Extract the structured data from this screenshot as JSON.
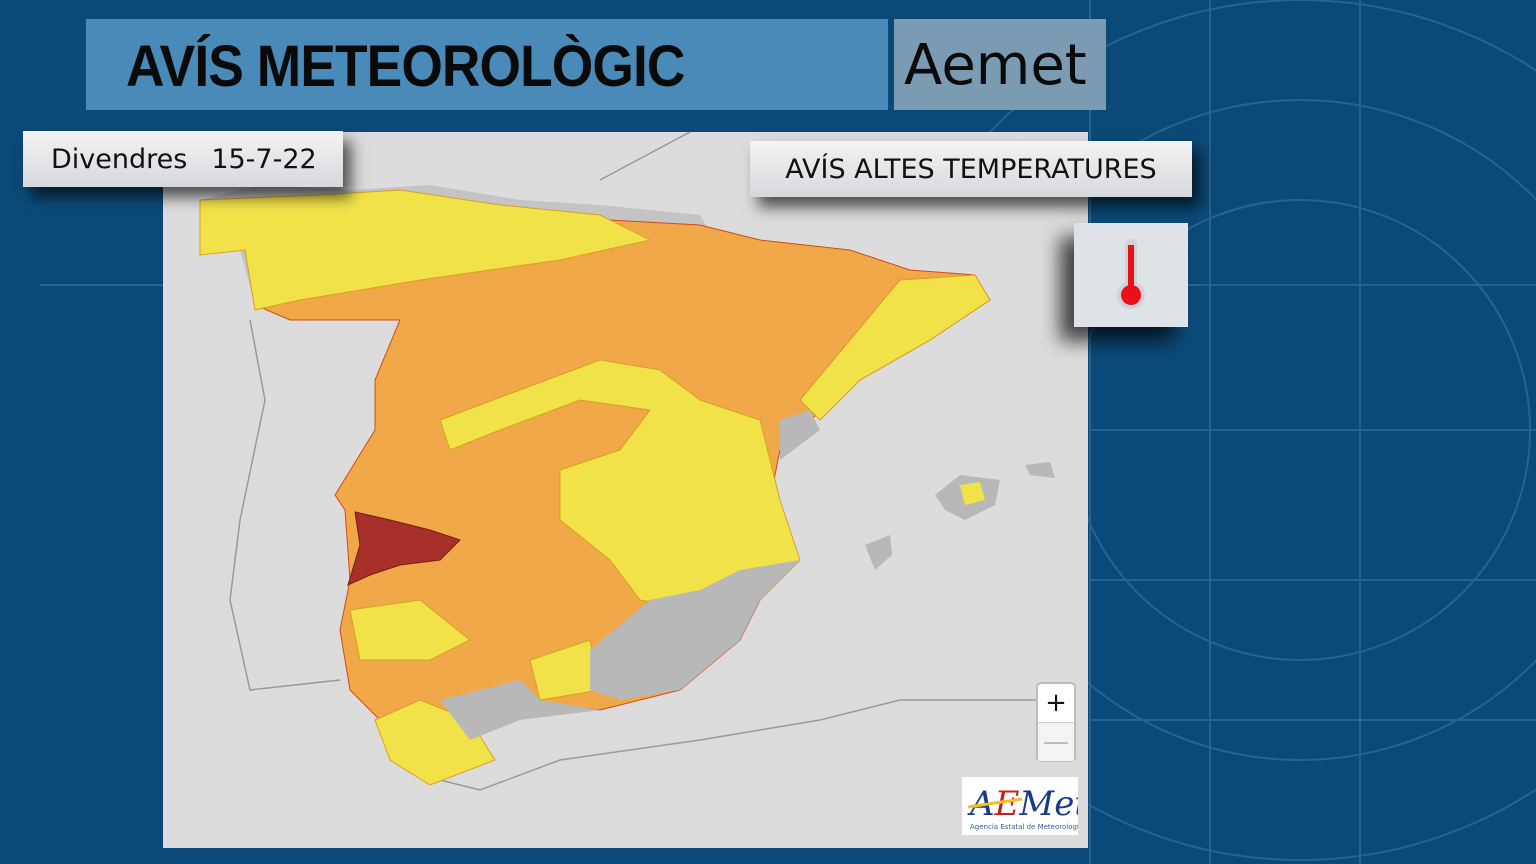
{
  "header": {
    "title": "AVÍS METEOROLÒGIC",
    "brand": "Aemet"
  },
  "date": {
    "day": "Divendres",
    "value": "15-7-22"
  },
  "warning": {
    "label": "AVÍS ALTES TEMPERATURES",
    "icon": "thermometer-icon"
  },
  "map": {
    "zoom_in": "+",
    "zoom_out": "—",
    "logo_text": "AEMet",
    "logo_subtext": "Agencia Estatal de Meteorología",
    "legend_colors": {
      "orange": "#f0a848",
      "yellow": "#f2e24a",
      "red": "#a8302a",
      "no_warning": "#b8b8b8"
    }
  }
}
